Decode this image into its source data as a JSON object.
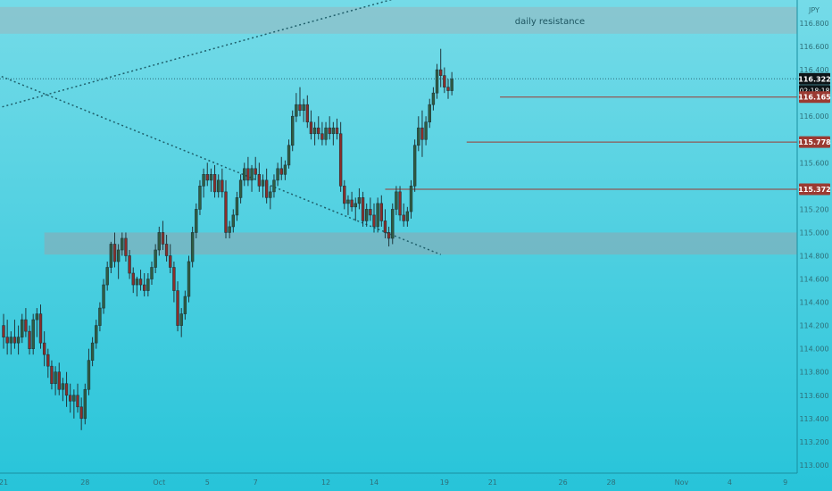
{
  "chart_data": {
    "type": "candlestick",
    "currency_label": "JPY",
    "ylim": [
      112.93,
      117.0
    ],
    "y_ticks": [
      "116.800",
      "116.600",
      "116.400",
      "116.200",
      "116.000",
      "115.800",
      "115.600",
      "115.400",
      "115.200",
      "115.000",
      "114.800",
      "114.600",
      "114.400",
      "114.200",
      "114.000",
      "113.800",
      "113.600",
      "113.400",
      "113.200",
      "113.000"
    ],
    "x_ticks": [
      {
        "label": "21",
        "index": 0
      },
      {
        "label": "28",
        "index": 22
      },
      {
        "label": "Oct",
        "index": 42
      },
      {
        "label": "5",
        "index": 55
      },
      {
        "label": "7",
        "index": 68
      },
      {
        "label": "12",
        "index": 87
      },
      {
        "label": "14",
        "index": 100
      },
      {
        "label": "19",
        "index": 119
      },
      {
        "label": "21",
        "index": 132
      },
      {
        "label": "26",
        "index": 151
      },
      {
        "label": "28",
        "index": 164
      },
      {
        "label": "Nov",
        "index": 183
      },
      {
        "label": "4",
        "index": 196
      },
      {
        "label": "9",
        "index": 211
      }
    ],
    "zones": [
      {
        "label": "daily resistance",
        "y_top": 116.94,
        "y_bottom": 116.71,
        "start_index": -5,
        "end_index": 215,
        "color": "#8fbfc8"
      },
      {
        "label": "",
        "y_top": 115.0,
        "y_bottom": 114.81,
        "start_index": 11,
        "end_index": 215,
        "color": "#7fb2bc"
      }
    ],
    "price_levels": [
      {
        "value": 116.165,
        "label": "116.165",
        "start_index": 134,
        "color": "#9b3a32"
      },
      {
        "value": 115.778,
        "label": "115.778",
        "start_index": 125,
        "color": "#9b3a32"
      },
      {
        "value": 115.372,
        "label": "115.372",
        "start_index": 103,
        "color": "#9b3a32"
      }
    ],
    "current_price": {
      "value": 116.322,
      "label": "116.322",
      "countdown": "02:18:18"
    },
    "trendlines": [
      {
        "x1": -5,
        "y1": 116.04,
        "x2": 110,
        "y2": 117.05
      },
      {
        "x1": -5,
        "y1": 116.4,
        "x2": 118,
        "y2": 114.81
      }
    ],
    "candles": [
      [
        114.2,
        114.3,
        114.0,
        114.1
      ],
      [
        114.1,
        114.25,
        113.95,
        114.05
      ],
      [
        114.05,
        114.15,
        113.95,
        114.1
      ],
      [
        114.1,
        114.25,
        114.0,
        114.05
      ],
      [
        114.05,
        114.2,
        113.95,
        114.1
      ],
      [
        114.1,
        114.3,
        114.05,
        114.25
      ],
      [
        114.25,
        114.35,
        114.1,
        114.15
      ],
      [
        114.15,
        114.2,
        113.95,
        114.0
      ],
      [
        114.0,
        114.3,
        113.95,
        114.25
      ],
      [
        114.25,
        114.35,
        114.1,
        114.3
      ],
      [
        114.3,
        114.38,
        114.0,
        114.05
      ],
      [
        114.05,
        114.15,
        113.85,
        113.95
      ],
      [
        113.95,
        114.0,
        113.75,
        113.85
      ],
      [
        113.85,
        113.9,
        113.65,
        113.7
      ],
      [
        113.7,
        113.85,
        113.6,
        113.8
      ],
      [
        113.8,
        113.88,
        113.6,
        113.65
      ],
      [
        113.65,
        113.75,
        113.55,
        113.7
      ],
      [
        113.7,
        113.8,
        113.5,
        113.6
      ],
      [
        113.6,
        113.7,
        113.45,
        113.55
      ],
      [
        113.55,
        113.65,
        113.4,
        113.6
      ],
      [
        113.6,
        113.7,
        113.45,
        113.5
      ],
      [
        113.5,
        113.58,
        113.3,
        113.4
      ],
      [
        113.4,
        113.7,
        113.35,
        113.65
      ],
      [
        113.65,
        114.0,
        113.6,
        113.9
      ],
      [
        113.9,
        114.1,
        113.85,
        114.05
      ],
      [
        114.05,
        114.25,
        114.0,
        114.2
      ],
      [
        114.2,
        114.4,
        114.15,
        114.35
      ],
      [
        114.35,
        114.6,
        114.3,
        114.55
      ],
      [
        114.55,
        114.75,
        114.5,
        114.7
      ],
      [
        114.7,
        114.92,
        114.65,
        114.9
      ],
      [
        114.9,
        115.0,
        114.7,
        114.75
      ],
      [
        114.75,
        114.9,
        114.6,
        114.85
      ],
      [
        114.85,
        115.0,
        114.8,
        114.95
      ],
      [
        114.95,
        115.0,
        114.75,
        114.8
      ],
      [
        114.8,
        114.85,
        114.6,
        114.65
      ],
      [
        114.65,
        114.7,
        114.48,
        114.55
      ],
      [
        114.55,
        114.62,
        114.45,
        114.6
      ],
      [
        114.6,
        114.68,
        114.5,
        114.55
      ],
      [
        114.55,
        114.65,
        114.45,
        114.5
      ],
      [
        114.5,
        114.65,
        114.45,
        114.6
      ],
      [
        114.6,
        114.75,
        114.55,
        114.7
      ],
      [
        114.7,
        114.9,
        114.65,
        114.85
      ],
      [
        114.85,
        115.05,
        114.8,
        115.0
      ],
      [
        115.0,
        115.1,
        114.85,
        114.9
      ],
      [
        114.9,
        114.98,
        114.75,
        114.8
      ],
      [
        114.8,
        114.9,
        114.65,
        114.7
      ],
      [
        114.7,
        114.75,
        114.4,
        114.5
      ],
      [
        114.5,
        114.58,
        114.15,
        114.2
      ],
      [
        114.2,
        114.35,
        114.1,
        114.3
      ],
      [
        114.3,
        114.5,
        114.25,
        114.45
      ],
      [
        114.45,
        114.8,
        114.4,
        114.75
      ],
      [
        114.75,
        115.05,
        114.7,
        115.0
      ],
      [
        115.0,
        115.25,
        114.95,
        115.2
      ],
      [
        115.2,
        115.45,
        115.15,
        115.4
      ],
      [
        115.4,
        115.55,
        115.3,
        115.5
      ],
      [
        115.5,
        115.6,
        115.4,
        115.45
      ],
      [
        115.45,
        115.55,
        115.35,
        115.5
      ],
      [
        115.5,
        115.58,
        115.3,
        115.35
      ],
      [
        115.35,
        115.5,
        115.3,
        115.45
      ],
      [
        115.45,
        115.55,
        115.3,
        115.35
      ],
      [
        115.35,
        115.45,
        114.95,
        115.0
      ],
      [
        115.0,
        115.1,
        114.95,
        115.05
      ],
      [
        115.05,
        115.2,
        115.0,
        115.15
      ],
      [
        115.15,
        115.35,
        115.1,
        115.3
      ],
      [
        115.3,
        115.5,
        115.25,
        115.45
      ],
      [
        115.45,
        115.6,
        115.4,
        115.55
      ],
      [
        115.55,
        115.65,
        115.4,
        115.45
      ],
      [
        115.45,
        115.58,
        115.35,
        115.55
      ],
      [
        115.55,
        115.65,
        115.45,
        115.5
      ],
      [
        115.5,
        115.6,
        115.35,
        115.4
      ],
      [
        115.4,
        115.5,
        115.3,
        115.45
      ],
      [
        115.45,
        115.55,
        115.25,
        115.3
      ],
      [
        115.3,
        115.4,
        115.2,
        115.35
      ],
      [
        115.35,
        115.5,
        115.3,
        115.45
      ],
      [
        115.45,
        115.6,
        115.4,
        115.55
      ],
      [
        115.55,
        115.65,
        115.45,
        115.5
      ],
      [
        115.5,
        115.62,
        115.45,
        115.58
      ],
      [
        115.58,
        115.8,
        115.55,
        115.75
      ],
      [
        115.75,
        116.05,
        115.7,
        116.0
      ],
      [
        116.0,
        116.2,
        115.95,
        116.1
      ],
      [
        116.1,
        116.25,
        116.0,
        116.05
      ],
      [
        116.05,
        116.15,
        115.95,
        116.1
      ],
      [
        116.1,
        116.18,
        115.9,
        115.95
      ],
      [
        115.95,
        116.05,
        115.8,
        115.85
      ],
      [
        115.85,
        115.95,
        115.75,
        115.9
      ],
      [
        115.9,
        116.0,
        115.8,
        115.85
      ],
      [
        115.85,
        115.95,
        115.75,
        115.8
      ],
      [
        115.8,
        115.95,
        115.75,
        115.9
      ],
      [
        115.9,
        116.0,
        115.8,
        115.85
      ],
      [
        115.85,
        115.95,
        115.75,
        115.9
      ],
      [
        115.9,
        115.98,
        115.8,
        115.85
      ],
      [
        115.85,
        115.95,
        115.35,
        115.4
      ],
      [
        115.4,
        115.45,
        115.2,
        115.25
      ],
      [
        115.25,
        115.32,
        115.15,
        115.28
      ],
      [
        115.28,
        115.35,
        115.18,
        115.22
      ],
      [
        115.22,
        115.3,
        115.1,
        115.25
      ],
      [
        115.25,
        115.38,
        115.2,
        115.3
      ],
      [
        115.3,
        115.35,
        115.05,
        115.1
      ],
      [
        115.1,
        115.25,
        115.05,
        115.2
      ],
      [
        115.2,
        115.3,
        115.1,
        115.15
      ],
      [
        115.15,
        115.25,
        115.0,
        115.05
      ],
      [
        115.05,
        115.3,
        115.0,
        115.25
      ],
      [
        115.25,
        115.32,
        115.05,
        115.1
      ],
      [
        115.1,
        115.2,
        114.95,
        115.0
      ],
      [
        115.0,
        115.05,
        114.88,
        114.95
      ],
      [
        114.95,
        115.25,
        114.9,
        115.2
      ],
      [
        115.2,
        115.4,
        115.15,
        115.35
      ],
      [
        115.35,
        115.4,
        115.1,
        115.15
      ],
      [
        115.15,
        115.25,
        115.05,
        115.1
      ],
      [
        115.1,
        115.22,
        115.05,
        115.18
      ],
      [
        115.18,
        115.45,
        115.12,
        115.4
      ],
      [
        115.4,
        115.8,
        115.35,
        115.75
      ],
      [
        115.75,
        116.0,
        115.7,
        115.9
      ],
      [
        115.9,
        116.05,
        115.65,
        115.8
      ],
      [
        115.8,
        116.0,
        115.75,
        115.95
      ],
      [
        115.95,
        116.15,
        115.9,
        116.1
      ],
      [
        116.1,
        116.25,
        116.05,
        116.2
      ],
      [
        116.2,
        116.45,
        116.15,
        116.4
      ],
      [
        116.4,
        116.58,
        116.25,
        116.35
      ],
      [
        116.35,
        116.42,
        116.2,
        116.25
      ],
      [
        116.25,
        116.32,
        116.15,
        116.22
      ],
      [
        116.22,
        116.38,
        116.18,
        116.32
      ]
    ]
  }
}
